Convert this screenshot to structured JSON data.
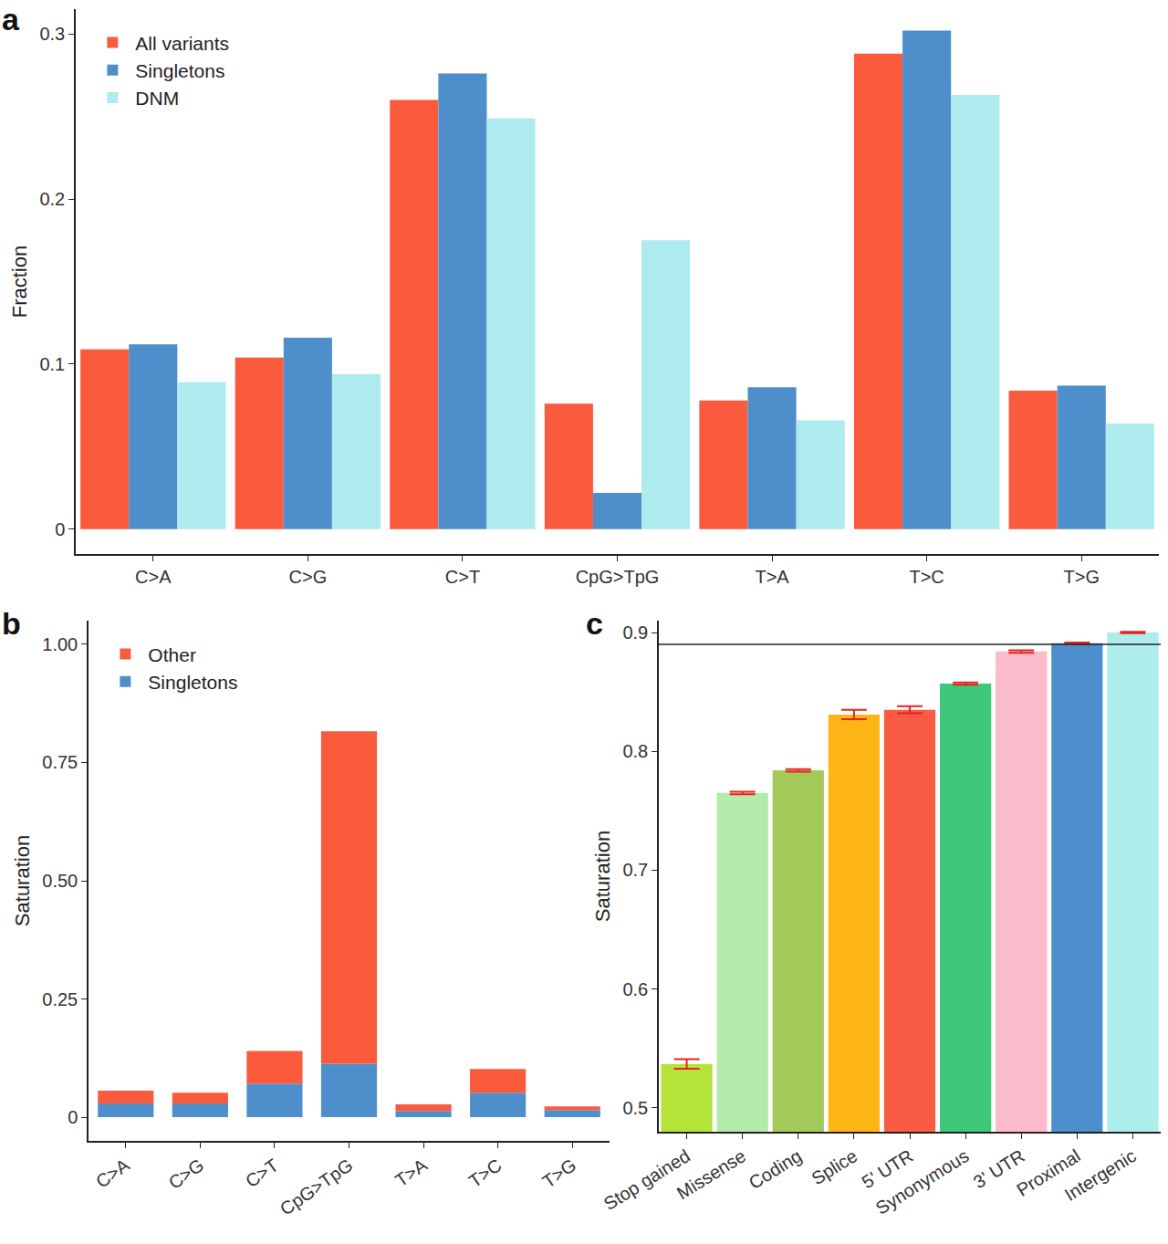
{
  "chart_data": [
    {
      "type": "bar",
      "title": "a",
      "ylabel": "Fraction",
      "categories": [
        "C>A",
        "C>G",
        "C>T",
        "CpG>TpG",
        "T>A",
        "T>C",
        "T>G"
      ],
      "series": [
        {
          "name": "All variants",
          "color": "#fa5b3d",
          "values": [
            0.109,
            0.104,
            0.26,
            0.076,
            0.078,
            0.288,
            0.084
          ]
        },
        {
          "name": "Singletons",
          "color": "#4e8fcb",
          "values": [
            0.112,
            0.116,
            0.276,
            0.022,
            0.086,
            0.302,
            0.087
          ]
        },
        {
          "name": "DNM",
          "color": "#aeebee",
          "values": [
            0.089,
            0.094,
            0.249,
            0.175,
            0.066,
            0.263,
            0.064
          ]
        }
      ],
      "ylim": [
        -0.015,
        0.315
      ],
      "yticks": [
        0,
        0.1,
        0.2,
        0.3
      ],
      "grid": false,
      "legend": "top-left"
    },
    {
      "type": "bar",
      "title": "b",
      "ylabel": "Saturation",
      "stacked": true,
      "categories": [
        "C>A",
        "C>G",
        "C>T",
        "CpG>TpG",
        "T>A",
        "T>C",
        "T>G"
      ],
      "series": [
        {
          "name": "Singletons",
          "color": "#4e8fcb",
          "values": [
            0.029,
            0.029,
            0.071,
            0.113,
            0.013,
            0.052,
            0.015
          ]
        },
        {
          "name": "Other",
          "color": "#fa5b3d",
          "values": [
            0.027,
            0.023,
            0.069,
            0.703,
            0.014,
            0.05,
            0.008
          ]
        }
      ],
      "ylim": [
        -0.05,
        1.05
      ],
      "yticks": [
        0,
        {
          "value": 0.25,
          "label": "0.25"
        },
        {
          "value": 0.5,
          "label": "0.50"
        },
        {
          "value": 0.75,
          "label": "0.75"
        },
        {
          "value": 1,
          "label": "1.00"
        }
      ],
      "grid": false,
      "legend": "top-left"
    },
    {
      "type": "bar",
      "title": "c",
      "ylabel": "Saturation",
      "categories": [
        "Stop gained",
        "Missense",
        "Coding",
        "Splice",
        "5' UTR",
        "Synonymous",
        "3' UTR",
        "Proximal",
        "Intergenic"
      ],
      "values": [
        0.537,
        0.765,
        0.784,
        0.831,
        0.835,
        0.857,
        0.884,
        0.891,
        0.9
      ],
      "errors": [
        0.004,
        0.001,
        0.001,
        0.004,
        0.003,
        0.001,
        0.001,
        0.0005,
        0.0005
      ],
      "colors": [
        "#b5e33a",
        "#b3ebab",
        "#a3c95a",
        "#fdb515",
        "#fa5b45",
        "#3dc87a",
        "#fbbbcb",
        "#4c8fcc",
        "#adedeb"
      ],
      "reference_line": 0.89,
      "ylim": [
        0.48,
        0.91
      ],
      "yticks": [
        0.5,
        0.6,
        0.7,
        0.8,
        0.9
      ],
      "grid": false
    }
  ]
}
